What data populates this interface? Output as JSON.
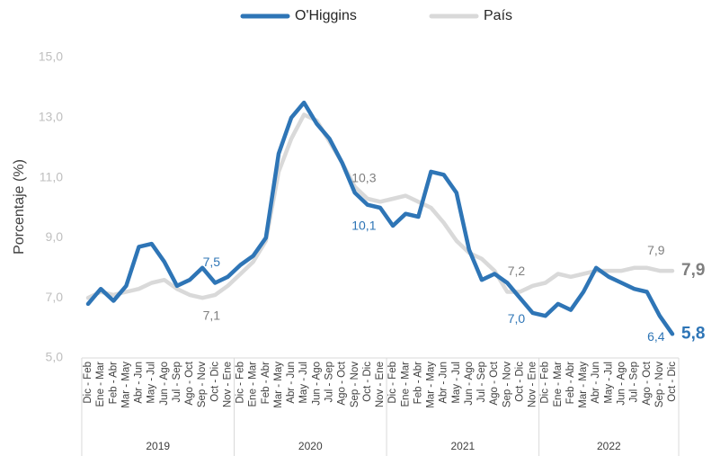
{
  "chart_data": {
    "type": "line",
    "y_label": "Porcentaje (%)",
    "ylim": [
      5,
      15
    ],
    "yticks": [
      {
        "value": 5,
        "label": "5,0"
      },
      {
        "value": 7,
        "label": "7,0"
      },
      {
        "value": 9,
        "label": "9,0"
      },
      {
        "value": 11,
        "label": "11,0"
      },
      {
        "value": 13,
        "label": "13,0"
      },
      {
        "value": 15,
        "label": "15,0"
      }
    ],
    "legend": "top",
    "category_groups": [
      {
        "label": "2019",
        "categories": [
          "Dic - Feb",
          "Ene - Mar",
          "Feb - Abr",
          "Mar - May",
          "Abr - Jun",
          "May - Jul",
          "Jun - Ago",
          "Jul - Sep",
          "Ago - Oct",
          "Sep - Nov",
          "Oct - Dic",
          "Nov - Ene"
        ]
      },
      {
        "label": "2020",
        "categories": [
          "Dic - Feb",
          "Ene - Mar",
          "Feb - Abr",
          "Mar - May",
          "Abr - Jun",
          "May - Jul",
          "Jun - Ago",
          "Jul - Sep",
          "Ago - Oct",
          "Sep - Nov",
          "Oct - Dic",
          "Nov - Ene"
        ]
      },
      {
        "label": "2021",
        "categories": [
          "Dic - Feb",
          "Ene - Mar",
          "Feb - Abr",
          "Mar - May",
          "Abr - Jun",
          "May - Jul",
          "Jun - Ago",
          "Jul - Sep",
          "Ago - Oct",
          "Sep - Nov",
          "Oct - Dic",
          "Nov - Ene"
        ]
      },
      {
        "label": "2022",
        "categories": [
          "Dic - Feb",
          "Ene - Mar",
          "Feb - Abr",
          "Mar - May",
          "Abr - Jun",
          "May - Jul",
          "Jun - Ago",
          "Jul - Sep",
          "Ago - Oct",
          "Sep - Nov",
          "Oct - Dic"
        ]
      }
    ],
    "series": [
      {
        "name": "O'Higgins",
        "color": "#2e75b6",
        "label_color": "#2e75b6",
        "values": [
          6.8,
          7.3,
          6.9,
          7.4,
          8.7,
          8.8,
          8.2,
          7.4,
          7.6,
          8.0,
          7.5,
          7.7,
          8.1,
          8.4,
          9.0,
          11.8,
          13.0,
          13.5,
          12.8,
          12.3,
          11.5,
          10.5,
          10.1,
          10.0,
          9.4,
          9.8,
          9.7,
          11.2,
          11.1,
          10.5,
          8.6,
          7.6,
          7.8,
          7.5,
          7.0,
          6.5,
          6.4,
          6.8,
          6.6,
          7.2,
          8.0,
          7.7,
          7.5,
          7.3,
          7.2,
          6.4,
          5.8
        ],
        "value_labels": [
          null,
          null,
          null,
          null,
          null,
          null,
          null,
          null,
          null,
          null,
          "7,5",
          null,
          null,
          null,
          null,
          null,
          null,
          null,
          null,
          null,
          null,
          null,
          "10,1",
          null,
          null,
          null,
          null,
          null,
          null,
          null,
          null,
          null,
          null,
          null,
          "7,0",
          null,
          null,
          null,
          null,
          null,
          null,
          null,
          null,
          null,
          null,
          "6,4",
          "5,8"
        ]
      },
      {
        "name": "País",
        "color": "#d9d9d9",
        "label_color": "#7f7f7f",
        "values": [
          7.0,
          7.2,
          7.1,
          7.2,
          7.3,
          7.5,
          7.6,
          7.3,
          7.1,
          7.0,
          7.1,
          7.4,
          7.8,
          8.2,
          8.9,
          11.2,
          12.3,
          13.1,
          12.9,
          12.2,
          11.5,
          10.7,
          10.3,
          10.2,
          10.3,
          10.4,
          10.2,
          10.0,
          9.5,
          8.9,
          8.5,
          8.3,
          7.9,
          7.2,
          7.2,
          7.4,
          7.5,
          7.8,
          7.7,
          7.8,
          7.9,
          7.9,
          7.9,
          8.0,
          8.0,
          7.9,
          7.9
        ],
        "value_labels": [
          null,
          null,
          null,
          null,
          null,
          null,
          null,
          null,
          null,
          null,
          "7,1",
          null,
          null,
          null,
          null,
          null,
          null,
          null,
          null,
          null,
          null,
          null,
          "10,3",
          null,
          null,
          null,
          null,
          null,
          null,
          null,
          null,
          null,
          null,
          null,
          "7,2",
          null,
          null,
          null,
          null,
          null,
          null,
          null,
          null,
          null,
          null,
          "7,9",
          "7,9"
        ]
      }
    ]
  }
}
